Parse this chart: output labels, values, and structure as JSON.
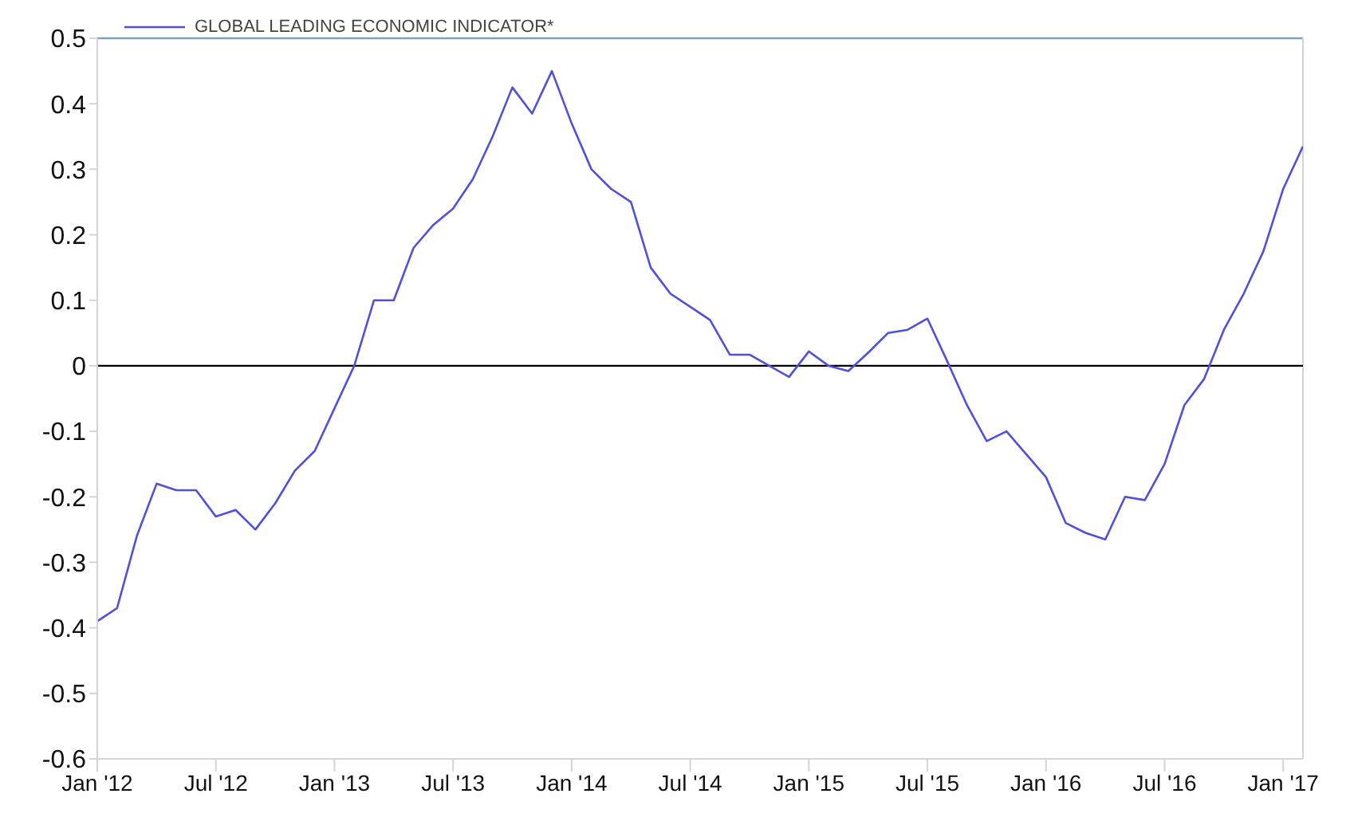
{
  "chart_data": {
    "type": "line",
    "x": [
      "2012-01",
      "2012-02",
      "2012-03",
      "2012-04",
      "2012-05",
      "2012-06",
      "2012-07",
      "2012-08",
      "2012-09",
      "2012-10",
      "2012-11",
      "2012-12",
      "2013-01",
      "2013-02",
      "2013-03",
      "2013-04",
      "2013-05",
      "2013-06",
      "2013-07",
      "2013-08",
      "2013-09",
      "2013-10",
      "2013-11",
      "2013-12",
      "2014-01",
      "2014-02",
      "2014-03",
      "2014-04",
      "2014-05",
      "2014-06",
      "2014-07",
      "2014-08",
      "2014-09",
      "2014-10",
      "2014-11",
      "2014-12",
      "2015-01",
      "2015-02",
      "2015-03",
      "2015-04",
      "2015-05",
      "2015-06",
      "2015-07",
      "2015-08",
      "2015-09",
      "2015-10",
      "2015-11",
      "2015-12",
      "2016-01",
      "2016-02",
      "2016-03",
      "2016-04",
      "2016-05",
      "2016-06",
      "2016-07",
      "2016-08",
      "2016-09",
      "2016-10",
      "2016-11",
      "2016-12",
      "2017-01",
      "2017-02"
    ],
    "series": [
      {
        "name": "GLOBAL LEADING ECONOMIC INDICATOR*",
        "color": "#5050d8",
        "values": [
          -0.39,
          -0.37,
          -0.26,
          -0.18,
          -0.19,
          -0.19,
          -0.23,
          -0.22,
          -0.25,
          -0.21,
          -0.16,
          -0.13,
          -0.065,
          0.0,
          0.1,
          0.1,
          0.18,
          0.215,
          0.24,
          0.285,
          0.35,
          0.425,
          0.385,
          0.45,
          0.37,
          0.3,
          0.27,
          0.25,
          0.15,
          0.11,
          0.09,
          0.07,
          0.017,
          0.017,
          0.0,
          -0.017,
          0.022,
          0.0,
          -0.008,
          0.02,
          0.05,
          0.055,
          0.072,
          0.007,
          -0.06,
          -0.115,
          -0.1,
          -0.135,
          -0.17,
          -0.24,
          -0.255,
          -0.265,
          -0.2,
          -0.205,
          -0.15,
          -0.06,
          -0.02,
          0.055,
          0.11,
          0.175,
          0.27,
          0.335
        ]
      }
    ],
    "xlim": [
      "2012-01",
      "2017-02"
    ],
    "xticks": [
      {
        "value": "2012-01",
        "label": "Jan '12"
      },
      {
        "value": "2012-07",
        "label": "Jul '12"
      },
      {
        "value": "2013-01",
        "label": "Jan '13"
      },
      {
        "value": "2013-07",
        "label": "Jul '13"
      },
      {
        "value": "2014-01",
        "label": "Jan '14"
      },
      {
        "value": "2014-07",
        "label": "Jul '14"
      },
      {
        "value": "2015-01",
        "label": "Jan '15"
      },
      {
        "value": "2015-07",
        "label": "Jul '15"
      },
      {
        "value": "2016-01",
        "label": "Jan '16"
      },
      {
        "value": "2016-07",
        "label": "Jul '16"
      },
      {
        "value": "2017-01",
        "label": "Jan '17"
      }
    ],
    "ylim": [
      -0.6,
      0.5
    ],
    "yticks": [
      -0.6,
      -0.5,
      -0.4,
      -0.3,
      -0.2,
      -0.1,
      0,
      0.1,
      0.2,
      0.3,
      0.4,
      0.5
    ],
    "ref_lines": [
      {
        "axis": "y",
        "value": 0,
        "color": "#000000"
      }
    ],
    "legend": "top left",
    "grid": false,
    "marker": "none",
    "line_style": "solid"
  }
}
